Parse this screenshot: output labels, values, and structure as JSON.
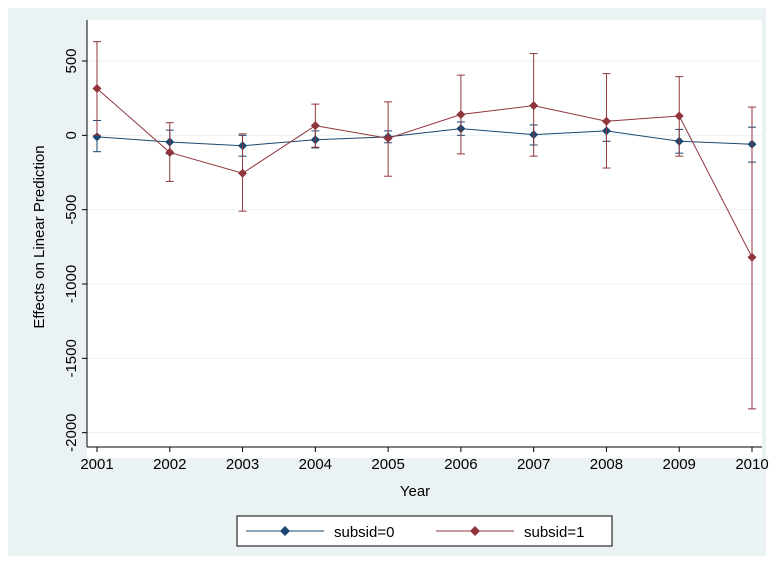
{
  "chart_data": {
    "type": "line",
    "xlabel": "Year",
    "ylabel": "Effects on Linear Prediction",
    "x": [
      2001,
      2002,
      2003,
      2004,
      2005,
      2006,
      2007,
      2008,
      2009,
      2010
    ],
    "x_tick_labels": [
      "2001",
      "2002",
      "2003",
      "2004",
      "2005",
      "2006",
      "2007",
      "2008",
      "2009",
      "2010"
    ],
    "y_ticks": [
      500,
      0,
      -500,
      -1000,
      -1500,
      -2000
    ],
    "y_tick_labels": [
      "500",
      "0",
      "-500",
      "-1000",
      "-1500",
      "-2000"
    ],
    "ylim": [
      -2000,
      600
    ],
    "grid": true,
    "legend_position": "bottom",
    "error_bars": true,
    "series": [
      {
        "name": "subsid=0",
        "color": "#1a476f",
        "marker": "diamond",
        "values": [
          -10,
          -45,
          -70,
          -30,
          -10,
          45,
          5,
          30,
          -40,
          -60
        ],
        "ci_low": [
          -110,
          -125,
          -140,
          -85,
          -50,
          0,
          -65,
          -40,
          -120,
          -180
        ],
        "ci_high": [
          100,
          35,
          0,
          30,
          30,
          90,
          70,
          100,
          40,
          55
        ]
      },
      {
        "name": "subsid=1",
        "color": "#90353b",
        "marker": "diamond",
        "values": [
          315,
          -115,
          -255,
          65,
          -20,
          140,
          200,
          95,
          130,
          -820
        ],
        "ci_low": [
          0,
          -310,
          -510,
          -80,
          -275,
          -125,
          -140,
          -220,
          -140,
          -1840
        ],
        "ci_high": [
          630,
          85,
          10,
          210,
          225,
          405,
          550,
          415,
          395,
          190
        ]
      }
    ]
  }
}
